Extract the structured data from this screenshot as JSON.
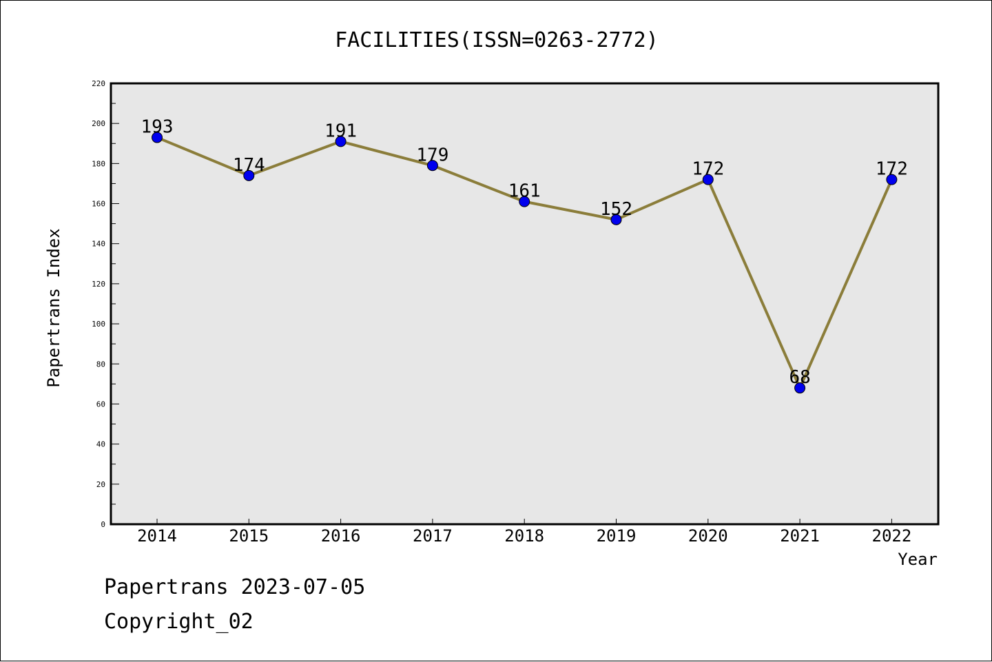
{
  "chart_data": {
    "type": "line",
    "title": "FACILITIES(ISSN=0263-2772)",
    "xlabel": "Year",
    "ylabel": "Papertrans Index",
    "x": [
      "2014",
      "2015",
      "2016",
      "2017",
      "2018",
      "2019",
      "2020",
      "2021",
      "2022"
    ],
    "series": [
      {
        "values": [
          193,
          174,
          191,
          179,
          161,
          152,
          172,
          68,
          172
        ]
      }
    ],
    "ylim": [
      0,
      220
    ],
    "yticks": [
      0,
      20,
      40,
      60,
      80,
      100,
      120,
      140,
      160,
      180,
      200,
      220
    ],
    "grid": false,
    "data_labels": true,
    "colors": {
      "line": "#8B7D3A",
      "marker": "#0000EE",
      "plot_background": "#E7E7E7"
    }
  },
  "footer": {
    "source": "Papertrans 2023-07-05",
    "copyright": "Copyright_02"
  }
}
